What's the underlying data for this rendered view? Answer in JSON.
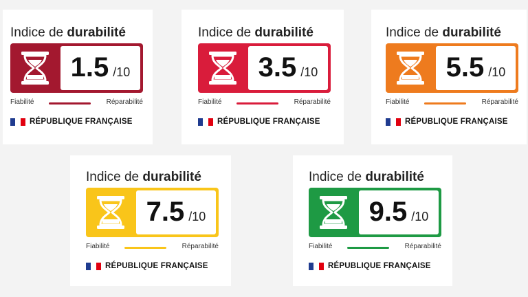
{
  "labels": [
    {
      "title_prefix": "Indice de ",
      "title_bold": "durabilité",
      "score": "1.5",
      "max": "/10",
      "left_label": "Fiabilité",
      "right_label": "Réparabilité",
      "footer": "RÉPUBLIQUE FRANÇAISE",
      "color": "#a3182f"
    },
    {
      "title_prefix": "Indice de ",
      "title_bold": "durabilité",
      "score": "3.5",
      "max": "/10",
      "left_label": "Fiabilité",
      "right_label": "Réparabilité",
      "footer": "RÉPUBLIQUE FRANÇAISE",
      "color": "#d91c3b"
    },
    {
      "title_prefix": "Indice de ",
      "title_bold": "durabilité",
      "score": "5.5",
      "max": "/10",
      "left_label": "Fiabilité",
      "right_label": "Réparabilité",
      "footer": "RÉPUBLIQUE FRANÇAISE",
      "color": "#ee7b1e"
    },
    {
      "title_prefix": "Indice de ",
      "title_bold": "durabilité",
      "score": "7.5",
      "max": "/10",
      "left_label": "Fiabilité",
      "right_label": "Réparabilité",
      "footer": "RÉPUBLIQUE FRANÇAISE",
      "color": "#f9c51a"
    },
    {
      "title_prefix": "Indice de ",
      "title_bold": "durabilité",
      "score": "9.5",
      "max": "/10",
      "left_label": "Fiabilité",
      "right_label": "Réparabilité",
      "footer": "RÉPUBLIQUE FRANÇAISE",
      "color": "#1e9a44"
    }
  ],
  "flag_colors": [
    "#1f3b8f",
    "#ffffff",
    "#e1000f"
  ]
}
